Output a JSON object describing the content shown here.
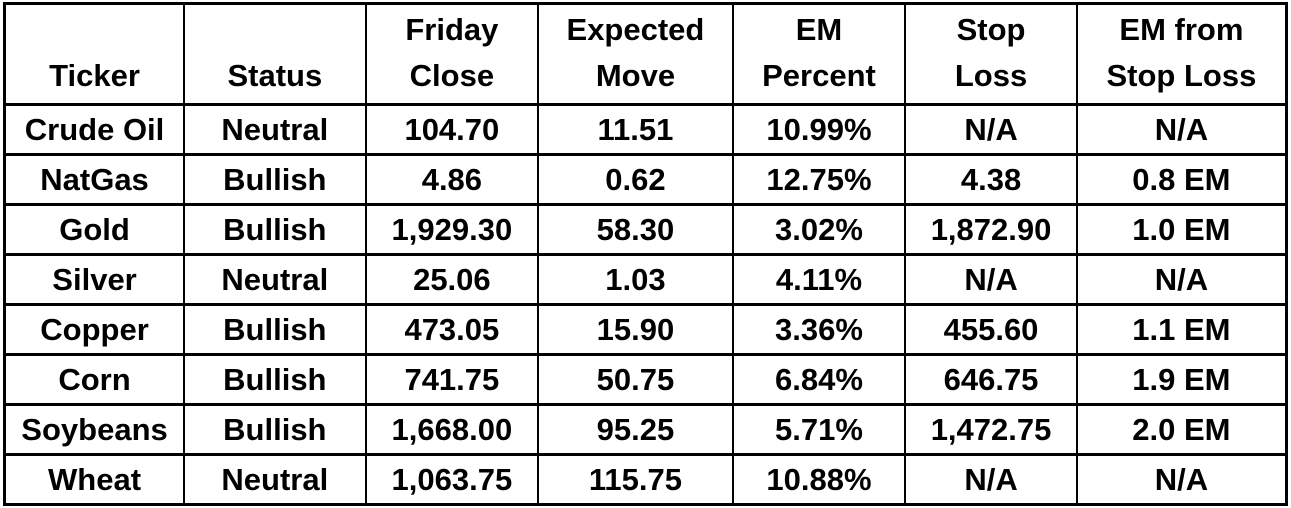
{
  "colors": {
    "text": "#000000",
    "border": "#000000",
    "background": "#ffffff"
  },
  "table": {
    "headers": [
      "Ticker",
      "Status",
      "Friday\nClose",
      "Expected\nMove",
      "EM\nPercent",
      "Stop\nLoss",
      "EM from\nStop Loss"
    ],
    "rows": [
      [
        "Crude Oil",
        "Neutral",
        "104.70",
        "11.51",
        "10.99%",
        "N/A",
        "N/A"
      ],
      [
        "NatGas",
        "Bullish",
        "4.86",
        "0.62",
        "12.75%",
        "4.38",
        "0.8 EM"
      ],
      [
        "Gold",
        "Bullish",
        "1,929.30",
        "58.30",
        "3.02%",
        "1,872.90",
        "1.0 EM"
      ],
      [
        "Silver",
        "Neutral",
        "25.06",
        "1.03",
        "4.11%",
        "N/A",
        "N/A"
      ],
      [
        "Copper",
        "Bullish",
        "473.05",
        "15.90",
        "3.36%",
        "455.60",
        "1.1 EM"
      ],
      [
        "Corn",
        "Bullish",
        "741.75",
        "50.75",
        "6.84%",
        "646.75",
        "1.9 EM"
      ],
      [
        "Soybeans",
        "Bullish",
        "1,668.00",
        "95.25",
        "5.71%",
        "1,472.75",
        "2.0 EM"
      ],
      [
        "Wheat",
        "Neutral",
        "1,063.75",
        "115.75",
        "10.88%",
        "N/A",
        "N/A"
      ]
    ]
  },
  "chart_data": {
    "type": "table",
    "title": "",
    "columns": [
      "Ticker",
      "Status",
      "Friday Close",
      "Expected Move",
      "EM Percent",
      "Stop Loss",
      "EM from Stop Loss"
    ],
    "rows": [
      [
        "Crude Oil",
        "Neutral",
        "104.70",
        "11.51",
        "10.99%",
        "N/A",
        "N/A"
      ],
      [
        "NatGas",
        "Bullish",
        "4.86",
        "0.62",
        "12.75%",
        "4.38",
        "0.8 EM"
      ],
      [
        "Gold",
        "Bullish",
        "1,929.30",
        "58.30",
        "3.02%",
        "1,872.90",
        "1.0 EM"
      ],
      [
        "Silver",
        "Neutral",
        "25.06",
        "1.03",
        "4.11%",
        "N/A",
        "N/A"
      ],
      [
        "Copper",
        "Bullish",
        "473.05",
        "15.90",
        "3.36%",
        "455.60",
        "1.1 EM"
      ],
      [
        "Corn",
        "Bullish",
        "741.75",
        "50.75",
        "6.84%",
        "646.75",
        "1.9 EM"
      ],
      [
        "Soybeans",
        "Bullish",
        "1,668.00",
        "95.25",
        "5.71%",
        "1,472.75",
        "2.0 EM"
      ],
      [
        "Wheat",
        "Neutral",
        "1,063.75",
        "115.75",
        "10.88%",
        "N/A",
        "N/A"
      ]
    ]
  }
}
